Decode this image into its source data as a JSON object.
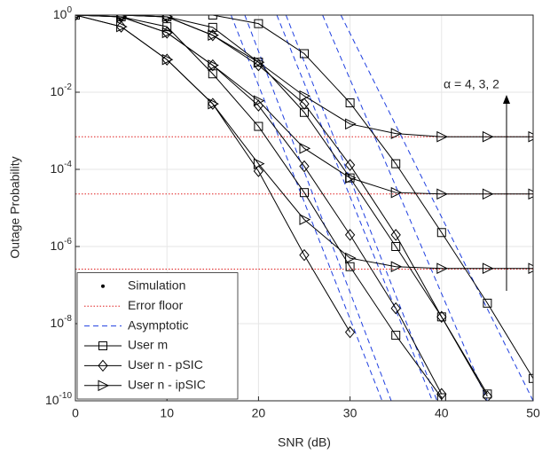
{
  "chart_data": {
    "type": "line",
    "xlabel": "SNR (dB)",
    "ylabel": "Outage Probability",
    "annotation": "α = 4, 3, 2",
    "x": [
      0,
      5,
      10,
      15,
      20,
      25,
      30,
      35,
      40,
      45,
      50
    ],
    "xlim": [
      0,
      50
    ],
    "xticks": [
      0,
      10,
      20,
      30,
      40,
      50
    ],
    "ylim": [
      1e-10,
      1
    ],
    "log_y": true,
    "grid": true,
    "legend": "lower left",
    "yticks": [
      {
        "value": 1e-10,
        "label": "10^-10"
      },
      {
        "value": 1e-08,
        "label": "10^-8"
      },
      {
        "value": 1e-06,
        "label": "10^-6"
      },
      {
        "value": 0.0001,
        "label": "10^-4"
      },
      {
        "value": 0.01,
        "label": "10^-2"
      },
      {
        "value": 1,
        "label": "10^0"
      }
    ],
    "series": [
      {
        "name": "Simulation",
        "color": "#000000",
        "marker": "dot"
      },
      {
        "name": "Error floor",
        "color": "#e02020",
        "dash": "dotted",
        "curves": [
          {
            "x": [
              0,
              50
            ],
            "values": [
              0.0007,
              0.0007
            ]
          },
          {
            "x": [
              0,
              50
            ],
            "values": [
              2.3e-05,
              2.3e-05
            ]
          },
          {
            "x": [
              0,
              50
            ],
            "values": [
              2.6e-07,
              2.6e-07
            ]
          }
        ]
      },
      {
        "name": "Asymptotic",
        "color": "#1f3fe0",
        "dash": "dashed",
        "curves": [
          {
            "x": [
              17,
              33.5
            ],
            "values": [
              1,
              1e-10
            ]
          },
          {
            "x": [
              18.5,
              34.5
            ],
            "values": [
              1,
              1e-10
            ]
          },
          {
            "x": [
              22,
              39
            ],
            "values": [
              1,
              1e-10
            ]
          },
          {
            "x": [
              23,
              39.5
            ],
            "values": [
              1,
              1e-10
            ]
          },
          {
            "x": [
              27,
              45
            ],
            "values": [
              1,
              1e-10
            ]
          },
          {
            "x": [
              29,
              50
            ],
            "values": [
              1,
              1e-10
            ]
          }
        ]
      },
      {
        "name": "User m",
        "color": "#000000",
        "marker": "square",
        "curves": [
          {
            "values": [
              1,
              0.9,
              0.5,
              0.03,
              0.0013,
              2.5e-05,
              3e-07,
              5e-09,
              1.2e-10,
              null,
              null
            ]
          },
          {
            "values": [
              1,
              1,
              0.9,
              0.48,
              0.06,
              0.003,
              6e-05,
              1e-06,
              1.5e-08,
              1.5e-10,
              null
            ]
          },
          {
            "values": [
              1,
              1,
              1,
              1,
              0.6,
              0.1,
              0.0053,
              0.00014,
              2.3e-06,
              3.4e-08,
              3.8e-10
            ]
          }
        ]
      },
      {
        "name": "User n - pSIC",
        "color": "#000000",
        "marker": "diamond",
        "curves": [
          {
            "values": [
              1,
              0.5,
              0.07,
              0.005,
              9e-05,
              6e-07,
              6e-09,
              null,
              null,
              null,
              null
            ]
          },
          {
            "values": [
              1,
              0.9,
              0.35,
              0.05,
              0.0045,
              0.00012,
              2e-06,
              2.5e-08,
              1.5e-10,
              null,
              null
            ]
          },
          {
            "values": [
              1,
              1,
              0.9,
              0.3,
              0.05,
              0.005,
              0.00013,
              2e-06,
              1.5e-08,
              1.3e-10,
              null
            ]
          }
        ]
      },
      {
        "name": "User n - ipSIC",
        "color": "#000000",
        "marker": "triangle",
        "curves": [
          {
            "values": [
              1,
              0.5,
              0.07,
              0.005,
              0.00014,
              5e-06,
              5e-07,
              3e-07,
              2.7e-07,
              2.7e-07,
              2.7e-07
            ]
          },
          {
            "values": [
              1,
              0.9,
              0.35,
              0.05,
              0.006,
              0.00035,
              6e-05,
              2.5e-05,
              2.3e-05,
              2.3e-05,
              2.3e-05
            ]
          },
          {
            "values": [
              1,
              1,
              0.9,
              0.3,
              0.06,
              0.008,
              0.0015,
              0.00085,
              0.0007,
              0.0007,
              0.0007
            ]
          }
        ]
      }
    ]
  }
}
